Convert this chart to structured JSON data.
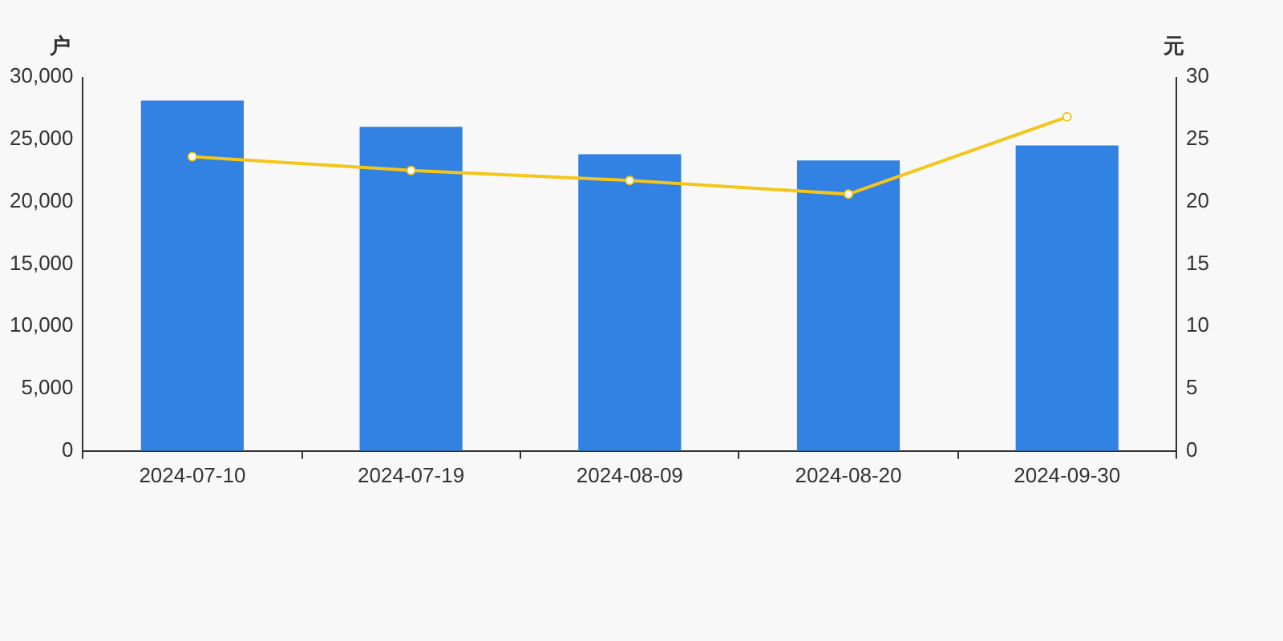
{
  "chart_data": {
    "type": "bar",
    "ylabel": "户",
    "y2label": "元",
    "categories": [
      "2024-07-10",
      "2024-07-19",
      "2024-08-09",
      "2024-08-20",
      "2024-09-30"
    ],
    "series": [
      {
        "color": "#3282e3",
        "values": [
          28100,
          26000,
          23800,
          23300,
          24500
        ]
      },
      {
        "type": "line",
        "axis": "y2",
        "color": "#f5c518",
        "marker": "circle",
        "values": [
          23.6,
          22.5,
          21.7,
          20.6,
          26.8
        ]
      }
    ],
    "ylim": [
      0,
      30000
    ],
    "yticks": [
      {
        "value": 0,
        "label": "0"
      },
      {
        "value": 5000,
        "label": "5,000"
      },
      {
        "value": 10000,
        "label": "10,000"
      },
      {
        "value": 15000,
        "label": "15,000"
      },
      {
        "value": 20000,
        "label": "20,000"
      },
      {
        "value": 25000,
        "label": "25,000"
      },
      {
        "value": 30000,
        "label": "30,000"
      }
    ],
    "y2lim": [
      0,
      30
    ],
    "y2ticks": [
      0,
      5,
      10,
      15,
      20,
      25,
      30
    ],
    "grid": false,
    "legend": false
  }
}
